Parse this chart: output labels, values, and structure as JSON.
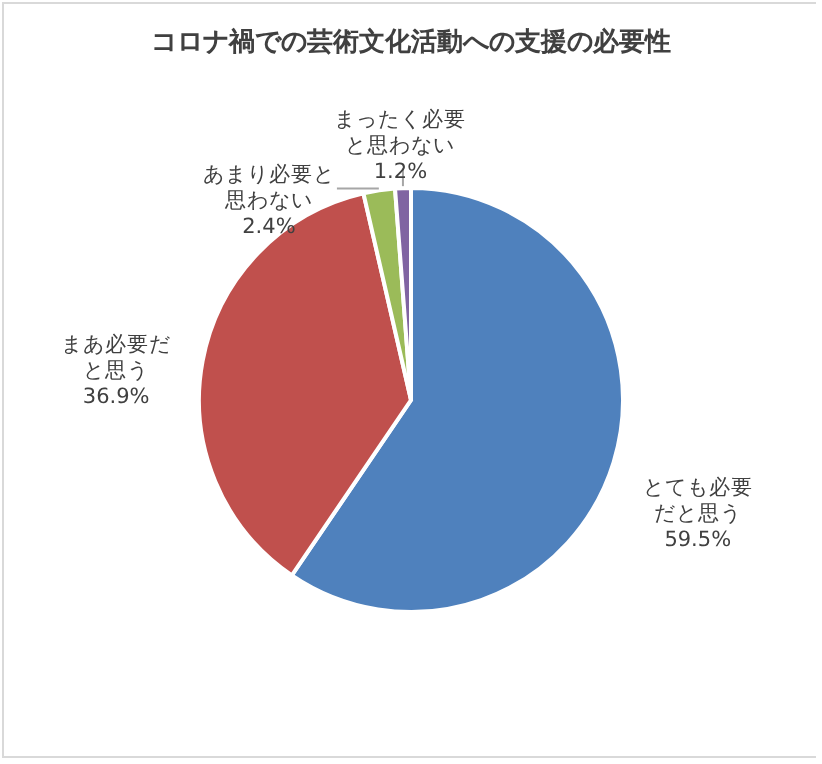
{
  "chart_data": {
    "type": "pie",
    "title": "コロナ禍での芸術文化活動への支援の必要性",
    "categories": [
      "とても必要だと思う",
      "まあ必要だと思う",
      "あまり必要と思わない",
      "まったく必要と思わない"
    ],
    "values": [
      59.5,
      36.9,
      2.4,
      1.2
    ],
    "value_labels": [
      "59.5%",
      "36.9%",
      "2.4%",
      "1.2%"
    ],
    "colors": [
      "#4f81bd",
      "#c0504d",
      "#9bbb59",
      "#8064a2"
    ],
    "legend": false
  }
}
